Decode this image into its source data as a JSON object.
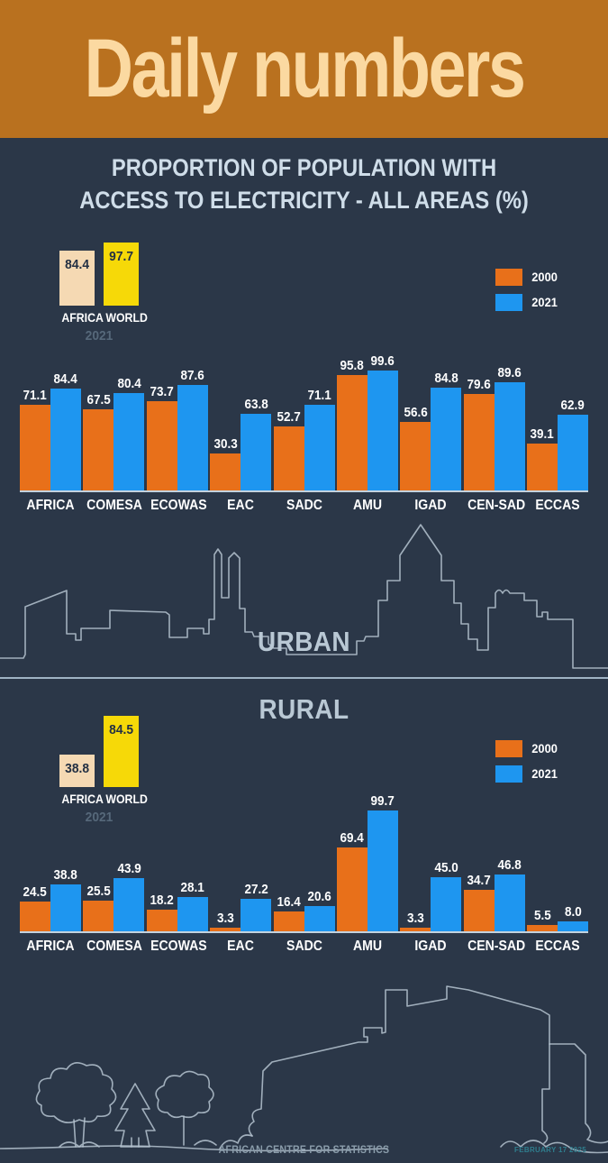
{
  "header": {
    "title": "Daily numbers"
  },
  "subtitle": {
    "line1": "PROPORTION OF POPULATION WITH",
    "line2": "ACCESS TO ELECTRICITY - ALL AREAS (%)"
  },
  "colors": {
    "background": "#2b3748",
    "header_bg": "#b9711f",
    "header_text": "#fbd9a1",
    "subtitle_text": "#cfdde9",
    "bar_2000": "#e8701a",
    "bar_2021": "#1e96f0",
    "africa_bar": "#f5d9b3",
    "world_bar": "#f6d908",
    "outline": "#b6c4d1",
    "section_label": "#b9c8d4",
    "muted_year": "#56687a",
    "footer_text": "#8b9dab",
    "footer_date": "#2f7e8e"
  },
  "legend": {
    "items": [
      {
        "label": "2000",
        "color_key": "bar_2000"
      },
      {
        "label": "2021",
        "color_key": "bar_2021"
      }
    ]
  },
  "chart_data": [
    {
      "id": "urban",
      "type": "bar",
      "section_label": "URBAN",
      "title": "Proportion of population with access to electricity - all areas (%) - Urban",
      "categories": [
        "AFRICA",
        "COMESA",
        "ECOWAS",
        "EAC",
        "SADC",
        "AMU",
        "IGAD",
        "CEN-SAD",
        "ECCAS"
      ],
      "series": [
        {
          "name": "2000",
          "values": [
            71.1,
            67.5,
            73.7,
            30.3,
            52.7,
            95.8,
            56.6,
            79.6,
            39.1
          ]
        },
        {
          "name": "2021",
          "values": [
            84.4,
            80.4,
            87.6,
            63.8,
            71.1,
            99.6,
            84.8,
            89.6,
            62.9
          ]
        }
      ],
      "ylim": [
        0,
        100
      ],
      "grid": false,
      "legend_position": "top-right",
      "benchmark": {
        "year": "2021",
        "items": [
          {
            "label": "AFRICA",
            "value": 84.4
          },
          {
            "label": "WORLD",
            "value": 97.7
          }
        ]
      }
    },
    {
      "id": "rural",
      "type": "bar",
      "section_label": "RURAL",
      "title": "Proportion of population with access to electricity - all areas (%) - Rural",
      "categories": [
        "AFRICA",
        "COMESA",
        "ECOWAS",
        "EAC",
        "SADC",
        "AMU",
        "IGAD",
        "CEN-SAD",
        "ECCAS"
      ],
      "series": [
        {
          "name": "2000",
          "values": [
            24.5,
            25.5,
            18.2,
            3.3,
            16.4,
            69.4,
            3.3,
            34.7,
            5.5
          ]
        },
        {
          "name": "2021",
          "values": [
            38.8,
            43.9,
            28.1,
            27.2,
            20.6,
            99.7,
            45.0,
            46.8,
            8.0
          ]
        }
      ],
      "ylim": [
        0,
        100
      ],
      "grid": false,
      "legend_position": "top-right",
      "benchmark": {
        "year": "2021",
        "items": [
          {
            "label": "AFRICA",
            "value": 38.8
          },
          {
            "label": "WORLD",
            "value": 84.5
          }
        ]
      }
    }
  ],
  "footer": {
    "credit": "AFRICAN CENTRE FOR STATISTICS",
    "date": "FEBRUARY 17 2025"
  }
}
